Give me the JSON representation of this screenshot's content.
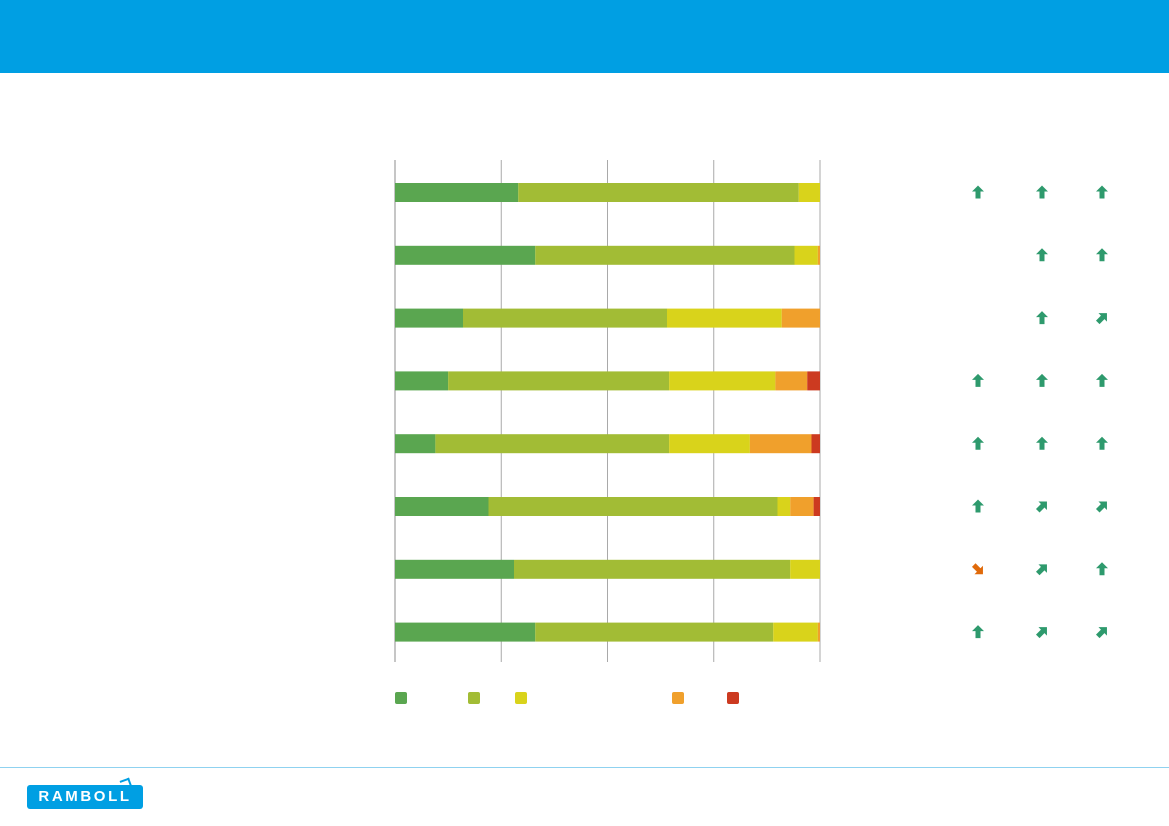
{
  "brand": {
    "logo_text": "RAMBOLL",
    "header_color": "#009fe3"
  },
  "chart_data": {
    "type": "bar",
    "orientation": "horizontal",
    "stacked": true,
    "normalized": true,
    "xlim": [
      0,
      100
    ],
    "grid": true,
    "legend": "bottom",
    "categories": [
      "",
      "",
      "",
      "",
      "",
      "",
      "",
      ""
    ],
    "series": [
      {
        "color": "#5aa650",
        "values": [
          29,
          33,
          16,
          12.5,
          9.5,
          22,
          28,
          33
        ]
      },
      {
        "color": "#a2bc35",
        "values": [
          66,
          61,
          48,
          52,
          55,
          68,
          65,
          56
        ]
      },
      {
        "color": "#d9d31b",
        "values": [
          5,
          5.5,
          27,
          25,
          19,
          3,
          7,
          10.5
        ]
      },
      {
        "color": "#f0a02c",
        "values": [
          0,
          0.5,
          9,
          7.5,
          14.5,
          5.5,
          0,
          0.5
        ]
      },
      {
        "color": "#cc3a20",
        "values": [
          0,
          0,
          0,
          3,
          2,
          1.5,
          0,
          0
        ]
      }
    ],
    "trend_arrows": [
      [
        "up",
        "up",
        "up"
      ],
      [
        "",
        "up",
        "up"
      ],
      [
        "",
        "up",
        "up-right"
      ],
      [
        "up",
        "up",
        "up"
      ],
      [
        "up",
        "up",
        "up"
      ],
      [
        "up",
        "up-right",
        "up-right"
      ],
      [
        "down-right",
        "up-right",
        "up"
      ],
      [
        "up",
        "up-right",
        "up-right"
      ]
    ],
    "trend_colors": {
      "up": "#2e9a6d",
      "up-right": "#2e9a6d",
      "down-right": "#e06a0a"
    }
  }
}
